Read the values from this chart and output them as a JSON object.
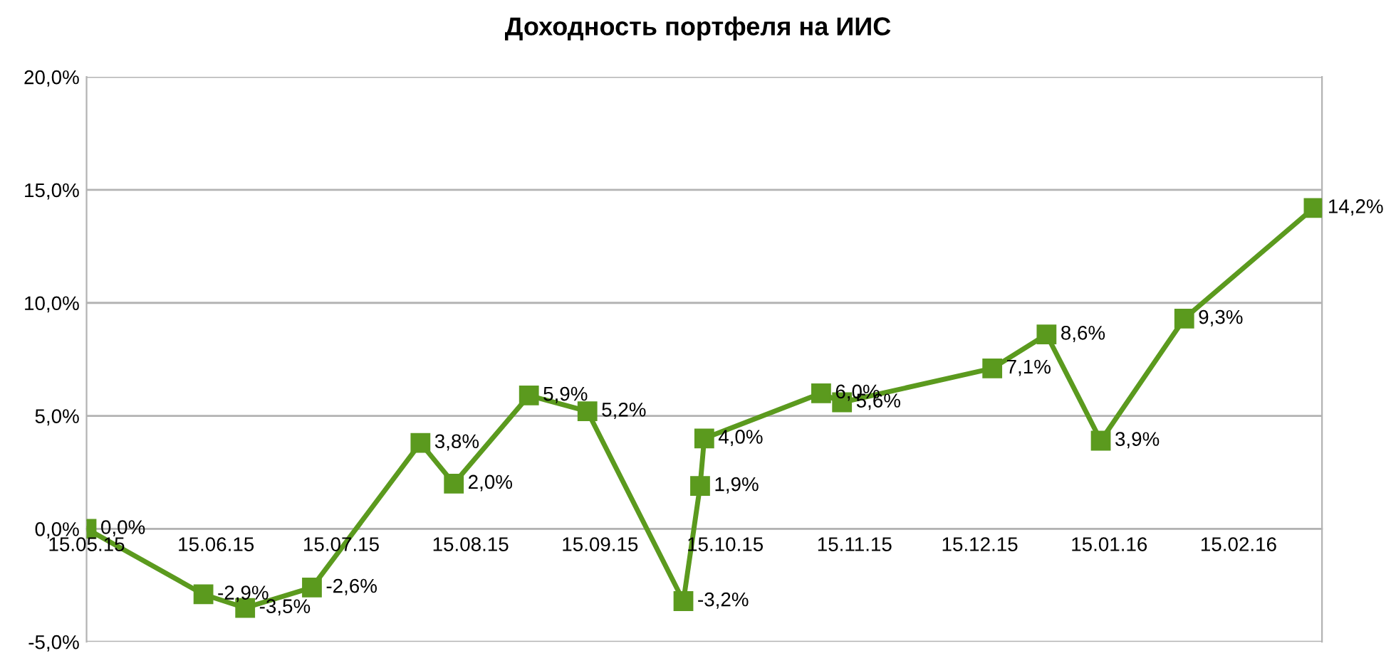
{
  "chart_data": {
    "type": "line",
    "title": "Доходность портфеля на ИИС",
    "x": [
      "2015-05-15",
      "2015-06-12",
      "2015-06-22",
      "2015-07-08",
      "2015-08-03",
      "2015-08-11",
      "2015-08-29",
      "2015-09-12",
      "2015-10-05",
      "2015-10-09",
      "2015-10-10",
      "2015-11-07",
      "2015-11-12",
      "2015-12-18",
      "2015-12-31",
      "2016-01-13",
      "2016-02-02",
      "2016-03-04"
    ],
    "series": [
      {
        "color": "#5b9a1e",
        "values": [
          0.0,
          -2.9,
          -3.5,
          -2.6,
          3.8,
          2.0,
          5.9,
          5.2,
          -3.2,
          1.9,
          4.0,
          6.0,
          5.6,
          7.1,
          8.6,
          3.9,
          9.3,
          14.2
        ],
        "value_labels": [
          "0,0%",
          "-2,9%",
          "-3,5%",
          "-2,6%",
          "3,8%",
          "2,0%",
          "5,9%",
          "5,2%",
          "-3,2%",
          "1,9%",
          "4,0%",
          "6,0%",
          "5,6%",
          "7,1%",
          "8,6%",
          "3,9%",
          "9,3%",
          "14,2%"
        ]
      }
    ],
    "xlim": [
      "2015-05-15",
      "2016-03-06"
    ],
    "xticks": [
      {
        "value": "2015-05-15",
        "label": "15.05.15"
      },
      {
        "value": "2015-06-15",
        "label": "15.06.15"
      },
      {
        "value": "2015-07-15",
        "label": "15.07.15"
      },
      {
        "value": "2015-08-15",
        "label": "15.08.15"
      },
      {
        "value": "2015-09-15",
        "label": "15.09.15"
      },
      {
        "value": "2015-10-15",
        "label": "15.10.15"
      },
      {
        "value": "2015-11-15",
        "label": "15.11.15"
      },
      {
        "value": "2015-12-15",
        "label": "15.12.15"
      },
      {
        "value": "2016-01-15",
        "label": "15.01.16"
      },
      {
        "value": "2016-02-15",
        "label": "15.02.16"
      }
    ],
    "ylim": [
      -5,
      20
    ],
    "yticks": [
      {
        "value": -5,
        "label": "-5,0%"
      },
      {
        "value": 0,
        "label": "0,0%"
      },
      {
        "value": 5,
        "label": "5,0%"
      },
      {
        "value": 10,
        "label": "10,0%"
      },
      {
        "value": 15,
        "label": "15,0%"
      },
      {
        "value": 20,
        "label": "20,0%"
      }
    ],
    "grid": "y",
    "marker": "square",
    "line_style": "solid",
    "legend": false
  }
}
